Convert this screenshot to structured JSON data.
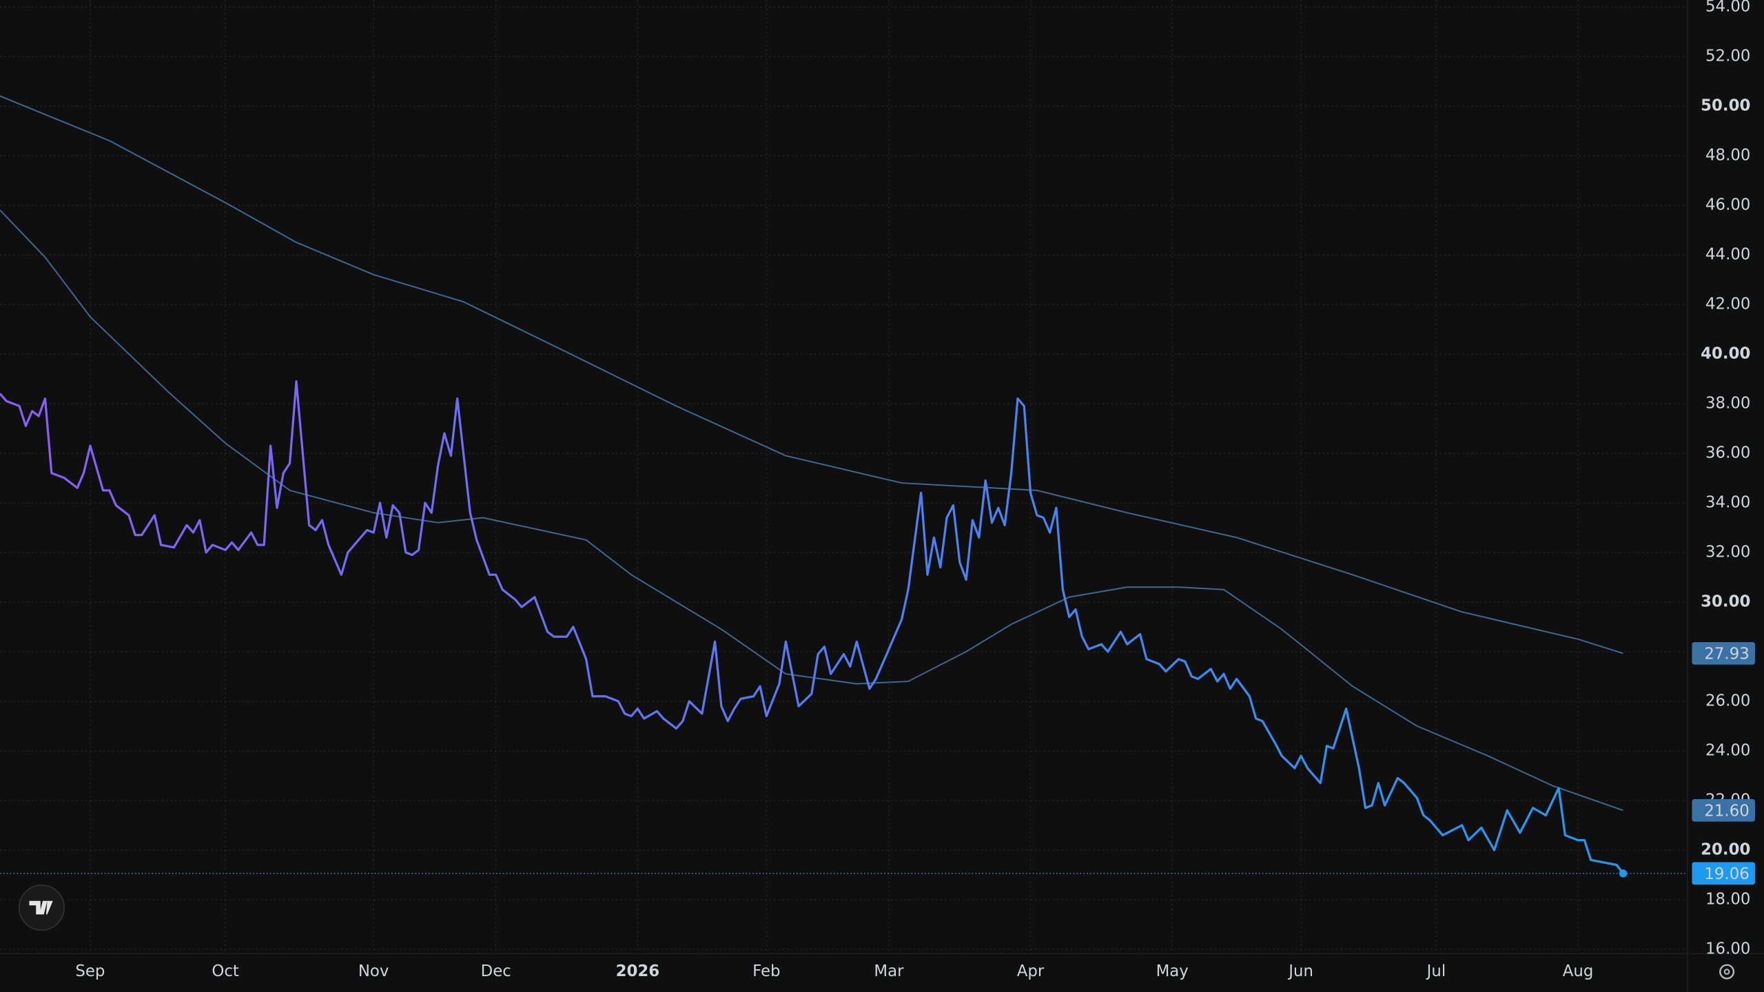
{
  "chart_data": {
    "type": "line",
    "xlim": [
      -14,
      248
    ],
    "ylim": [
      16,
      54
    ],
    "grid": true,
    "xticks": [
      {
        "value": 0,
        "label": "Sep"
      },
      {
        "value": 21,
        "label": "Oct"
      },
      {
        "value": 44,
        "label": "Nov"
      },
      {
        "value": 63,
        "label": "Dec"
      },
      {
        "value": 85,
        "label": "2026",
        "bold": true
      },
      {
        "value": 105,
        "label": "Feb"
      },
      {
        "value": 124,
        "label": "Mar"
      },
      {
        "value": 146,
        "label": "Apr"
      },
      {
        "value": 168,
        "label": "May"
      },
      {
        "value": 188,
        "label": "Jun"
      },
      {
        "value": 209,
        "label": "Jul"
      },
      {
        "value": 231,
        "label": "Aug"
      }
    ],
    "yticks": [
      {
        "value": 16,
        "label": "16.00"
      },
      {
        "value": 18,
        "label": "18.00"
      },
      {
        "value": 20,
        "label": "20.00"
      },
      {
        "value": 22,
        "label": "22.00"
      },
      {
        "value": 24,
        "label": "24.00"
      },
      {
        "value": 26,
        "label": "26.00"
      },
      {
        "value": 28,
        "label": "28.00"
      },
      {
        "value": 30,
        "label": "30.00"
      },
      {
        "value": 32,
        "label": "32.00"
      },
      {
        "value": 34,
        "label": "34.00"
      },
      {
        "value": 36,
        "label": "36.00"
      },
      {
        "value": 38,
        "label": "38.00"
      },
      {
        "value": 40,
        "label": "40.00"
      },
      {
        "value": 42,
        "label": "42.00"
      },
      {
        "value": 44,
        "label": "44.00"
      },
      {
        "value": 46,
        "label": "46.00"
      },
      {
        "value": 48,
        "label": "48.00"
      },
      {
        "value": 50,
        "label": "50.00"
      },
      {
        "value": 52,
        "label": "52.00"
      },
      {
        "value": 54,
        "label": "54.00"
      }
    ],
    "series": [
      {
        "gradient": [
          "#8b5cf6",
          "#1e9bf0"
        ],
        "label_color": "#1e9bf0",
        "last_label": "19.06",
        "price_line": true,
        "x": [
          -14,
          -13,
          -11,
          -10,
          -9,
          -8,
          -7,
          -6,
          -5,
          -4,
          -2,
          -1,
          0,
          2,
          3,
          4,
          6,
          7,
          8,
          10,
          11,
          13,
          15,
          16,
          17,
          18,
          19,
          21,
          22,
          23,
          25,
          26,
          27,
          28,
          29,
          30,
          31,
          32,
          34,
          35,
          36,
          37,
          39,
          40,
          42,
          43,
          44,
          45,
          46,
          47,
          48,
          49,
          50,
          51,
          52,
          53,
          54,
          55,
          56,
          57,
          59,
          60,
          62,
          63,
          64,
          66,
          67,
          69,
          71,
          72,
          74,
          75,
          77,
          78,
          80,
          82,
          83,
          84,
          85,
          86,
          88,
          89,
          91,
          92,
          93,
          95,
          97,
          98,
          99,
          100,
          101,
          103,
          104,
          105,
          107,
          108,
          110,
          112,
          113,
          114,
          115,
          117,
          118,
          119,
          121,
          122,
          124,
          126,
          127,
          129,
          130,
          131,
          132,
          133,
          134,
          135,
          136,
          137,
          138,
          139,
          140,
          141,
          142,
          143,
          144,
          145,
          146,
          147,
          148,
          149,
          150,
          151,
          152,
          153,
          154,
          155,
          157,
          158,
          160,
          161,
          163,
          164,
          166,
          167,
          169,
          170,
          171,
          172,
          174,
          175,
          176,
          177,
          178,
          180,
          181,
          182,
          184,
          185,
          187,
          188,
          189,
          191,
          192,
          193,
          195,
          197,
          198,
          199,
          200,
          201,
          203,
          204,
          206,
          207,
          208,
          210,
          213,
          214,
          216,
          218,
          220,
          222,
          224,
          226,
          228,
          229,
          231,
          232,
          233,
          235,
          237,
          238
        ],
        "values": [
          38.4,
          38.1,
          37.9,
          37.1,
          37.7,
          37.5,
          38.2,
          35.2,
          35.1,
          35.0,
          34.6,
          35.2,
          36.3,
          34.5,
          34.5,
          33.9,
          33.5,
          32.7,
          32.7,
          33.5,
          32.3,
          32.2,
          33.1,
          32.8,
          33.3,
          32.0,
          32.3,
          32.1,
          32.4,
          32.1,
          32.8,
          32.3,
          32.3,
          36.3,
          33.8,
          35.2,
          35.6,
          38.9,
          33.1,
          32.9,
          33.3,
          32.3,
          31.1,
          32.0,
          32.6,
          32.9,
          32.8,
          34.0,
          32.6,
          33.9,
          33.6,
          32.0,
          31.9,
          32.1,
          34.0,
          33.6,
          35.5,
          36.8,
          35.9,
          38.2,
          33.6,
          32.5,
          31.1,
          31.1,
          30.5,
          30.1,
          29.8,
          30.2,
          28.8,
          28.6,
          28.6,
          29.0,
          27.7,
          26.2,
          26.2,
          26.0,
          25.5,
          25.4,
          25.7,
          25.3,
          25.6,
          25.3,
          24.9,
          25.2,
          26.0,
          25.5,
          28.4,
          25.8,
          25.2,
          25.7,
          26.1,
          26.2,
          26.6,
          25.4,
          26.7,
          28.4,
          25.8,
          26.3,
          27.9,
          28.2,
          27.1,
          27.9,
          27.4,
          28.4,
          26.5,
          26.9,
          28.1,
          29.3,
          30.5,
          34.4,
          31.1,
          32.6,
          31.4,
          33.4,
          33.9,
          31.6,
          30.9,
          33.3,
          32.6,
          34.9,
          33.2,
          33.8,
          33.1,
          35.2,
          38.2,
          37.9,
          34.4,
          33.5,
          33.4,
          32.8,
          33.8,
          30.5,
          29.4,
          29.7,
          28.6,
          28.1,
          28.3,
          28.0,
          28.8,
          28.3,
          28.7,
          27.7,
          27.5,
          27.2,
          27.7,
          27.6,
          27.0,
          26.9,
          27.3,
          26.8,
          27.1,
          26.5,
          26.9,
          26.2,
          25.3,
          25.2,
          24.3,
          23.8,
          23.3,
          23.8,
          23.3,
          22.7,
          24.2,
          24.1,
          25.7,
          23.3,
          21.7,
          21.8,
          22.7,
          21.8,
          22.9,
          22.7,
          22.1,
          21.4,
          21.2,
          20.6,
          21.0,
          20.4,
          20.9,
          20.0,
          21.6,
          20.7,
          21.7,
          21.4,
          22.5,
          20.6,
          20.4,
          20.4,
          19.6,
          19.5,
          19.4,
          19.06
        ]
      },
      {
        "color": "#3d6a94",
        "label_color": "#3a72a6",
        "last_label": "27.93",
        "x": [
          -14,
          3,
          21,
          32,
          44,
          58,
          73,
          91,
          108,
          126,
          147,
          161,
          178,
          196,
          213,
          231,
          238
        ],
        "values": [
          50.4,
          48.6,
          46.1,
          44.5,
          43.2,
          42.1,
          40.2,
          37.9,
          35.9,
          34.8,
          34.5,
          33.6,
          32.6,
          31.1,
          29.6,
          28.5,
          27.93
        ]
      },
      {
        "color": "#3d6a94",
        "label_color": "#3a72a6",
        "last_label": "21.60",
        "x": [
          -14,
          -7,
          0,
          12,
          21,
          31,
          44,
          54,
          61,
          77,
          84,
          98,
          108,
          119,
          127,
          136,
          143,
          152,
          161,
          169,
          176,
          185,
          196,
          206,
          217,
          227,
          238
        ],
        "values": [
          45.8,
          43.9,
          41.5,
          38.5,
          36.4,
          34.5,
          33.6,
          33.2,
          33.4,
          32.5,
          31.1,
          28.9,
          27.1,
          26.7,
          26.8,
          28.0,
          29.1,
          30.2,
          30.6,
          30.6,
          30.5,
          28.9,
          26.6,
          25.0,
          23.8,
          22.6,
          21.6
        ]
      }
    ]
  }
}
